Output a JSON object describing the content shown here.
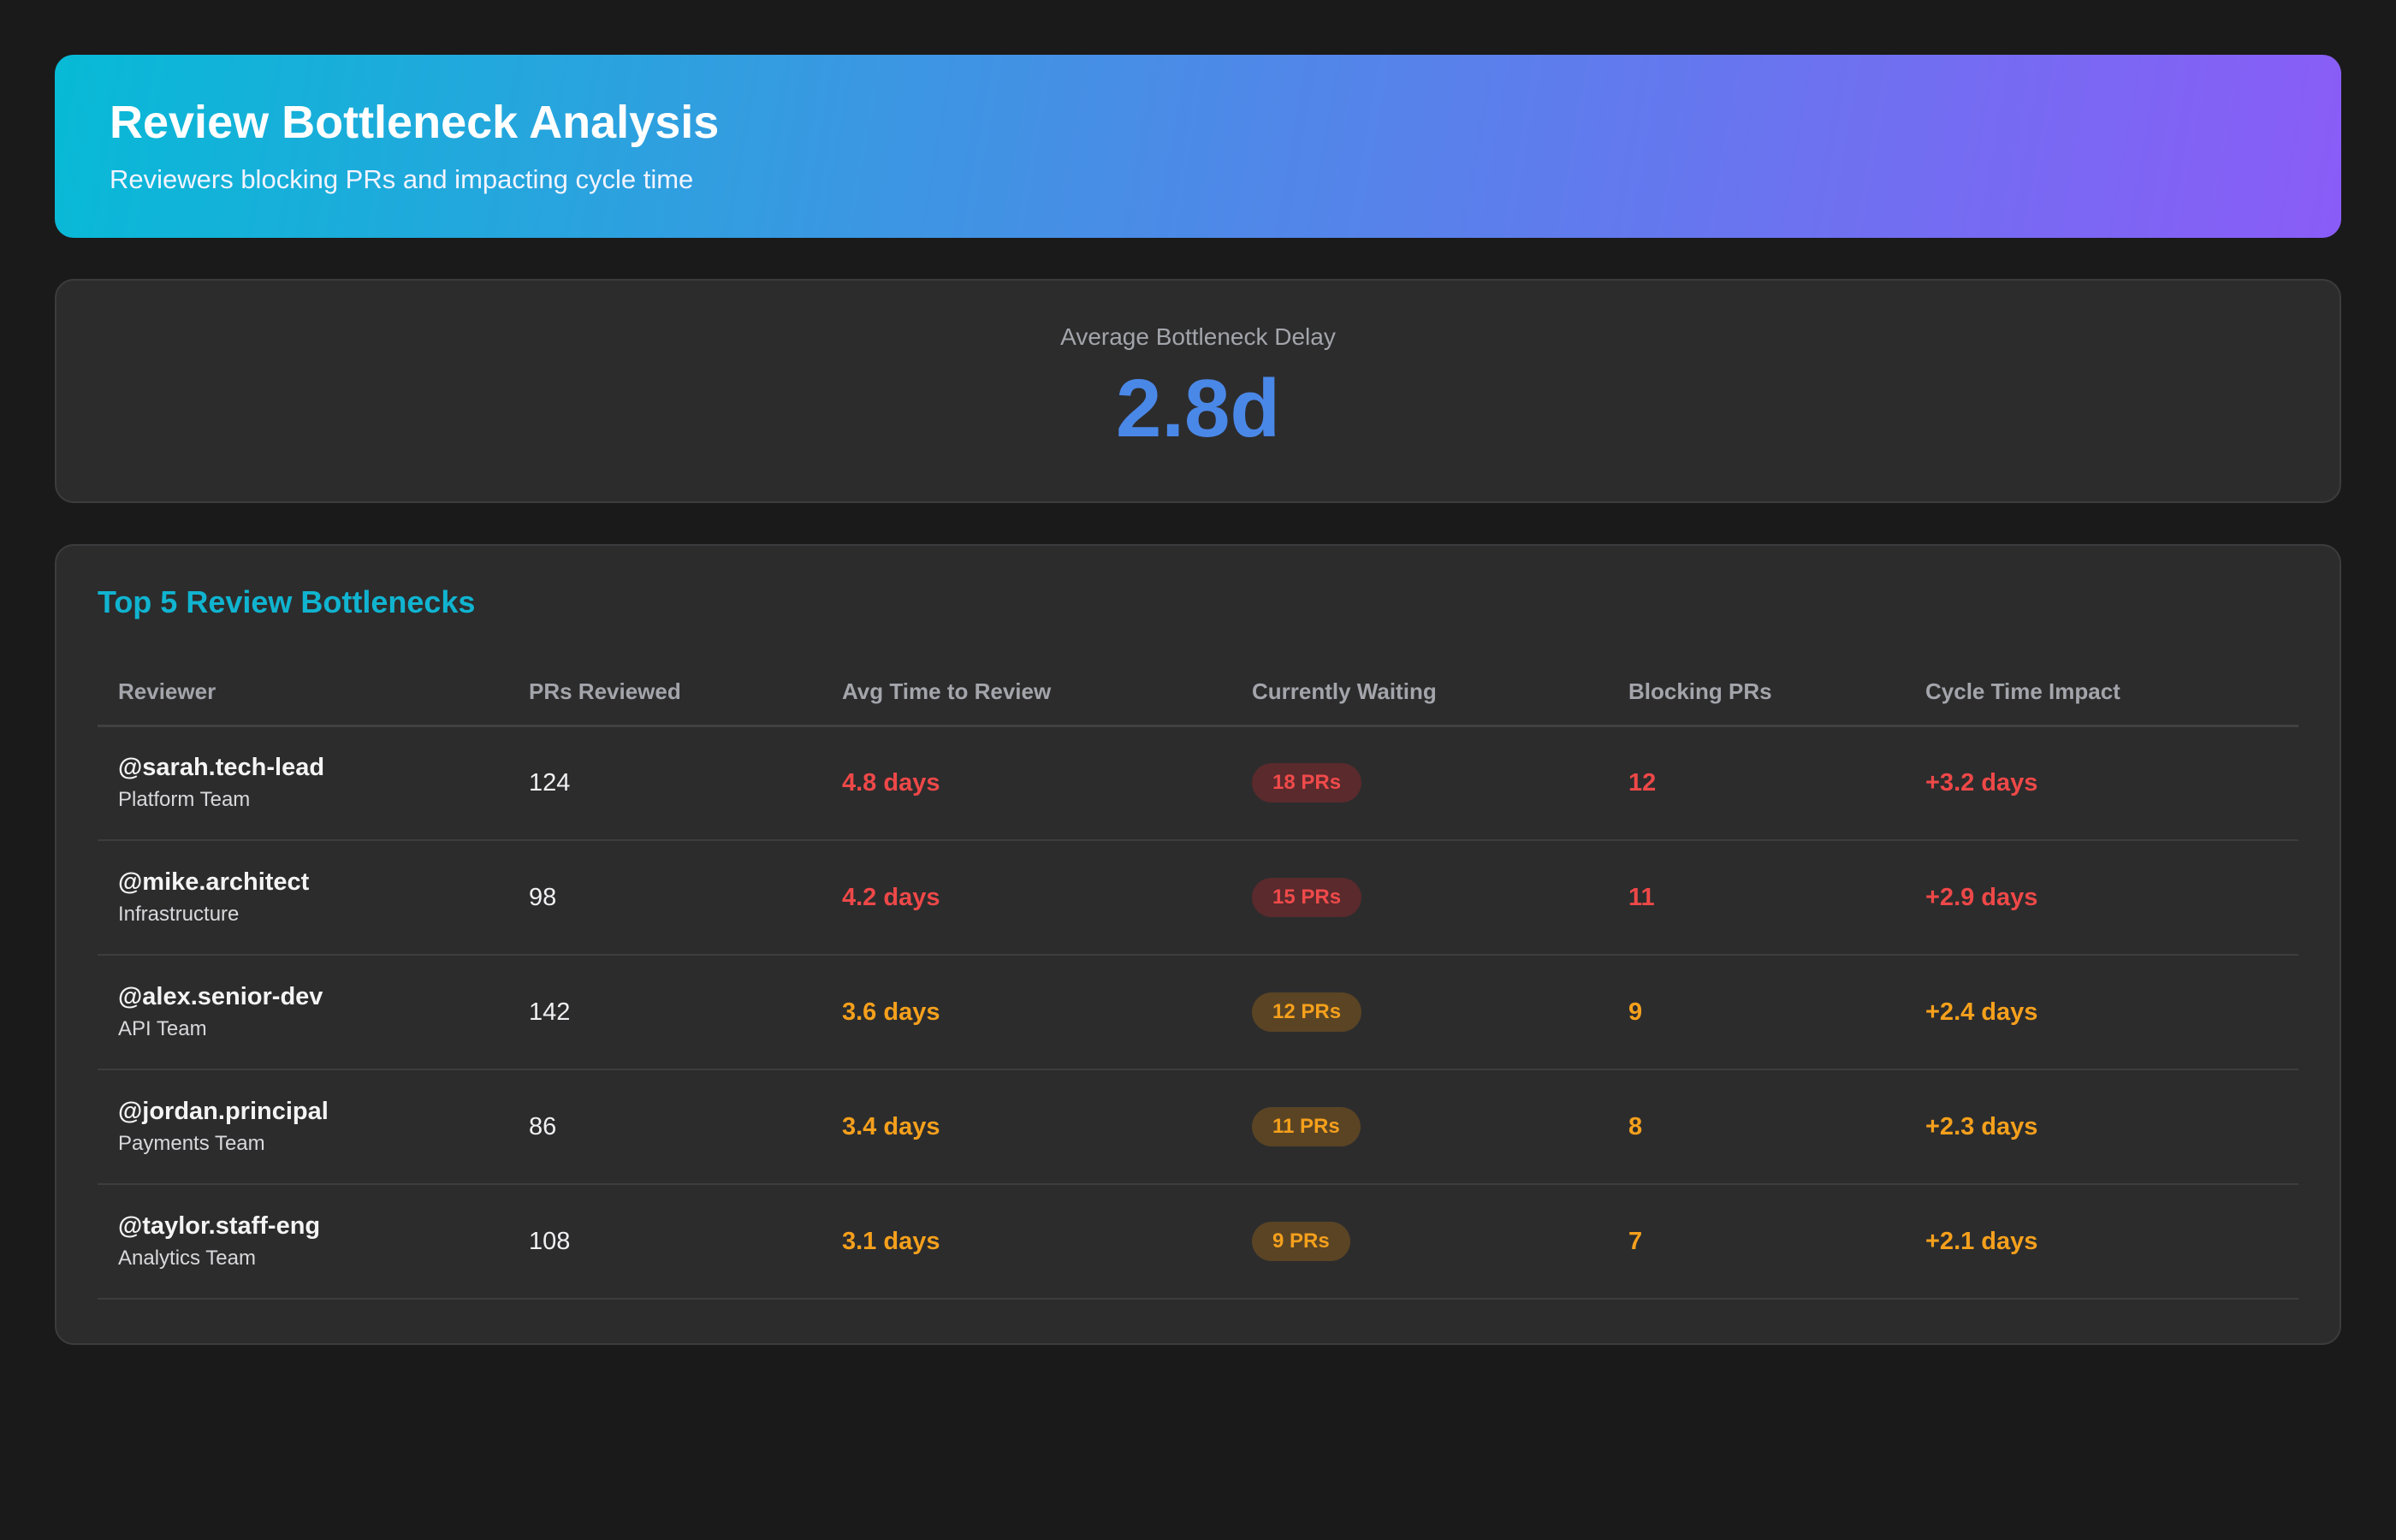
{
  "header": {
    "title": "Review Bottleneck Analysis",
    "subtitle": "Reviewers blocking PRs and impacting cycle time"
  },
  "metric": {
    "label": "Average Bottleneck Delay",
    "value": "2.8d",
    "value_color": "#4a88e8"
  },
  "table": {
    "title": "Top 5 Review Bottlenecks",
    "columns": [
      "Reviewer",
      "PRs Reviewed",
      "Avg Time to Review",
      "Currently Waiting",
      "Blocking PRs",
      "Cycle Time Impact"
    ],
    "rows": [
      {
        "name": "@sarah.tech-lead",
        "team": "Platform Team",
        "prs_reviewed": "124",
        "avg_time": "4.8 days",
        "waiting": "18 PRs",
        "blocking": "12",
        "impact": "+3.2 days",
        "severity": "red"
      },
      {
        "name": "@mike.architect",
        "team": "Infrastructure",
        "prs_reviewed": "98",
        "avg_time": "4.2 days",
        "waiting": "15 PRs",
        "blocking": "11",
        "impact": "+2.9 days",
        "severity": "red"
      },
      {
        "name": "@alex.senior-dev",
        "team": "API Team",
        "prs_reviewed": "142",
        "avg_time": "3.6 days",
        "waiting": "12 PRs",
        "blocking": "9",
        "impact": "+2.4 days",
        "severity": "orange"
      },
      {
        "name": "@jordan.principal",
        "team": "Payments Team",
        "prs_reviewed": "86",
        "avg_time": "3.4 days",
        "waiting": "11 PRs",
        "blocking": "8",
        "impact": "+2.3 days",
        "severity": "orange"
      },
      {
        "name": "@taylor.staff-eng",
        "team": "Analytics Team",
        "prs_reviewed": "108",
        "avg_time": "3.1 days",
        "waiting": "9 PRs",
        "blocking": "7",
        "impact": "+2.1 days",
        "severity": "orange"
      }
    ]
  },
  "colors": {
    "severity_red": "#ee4848",
    "severity_orange": "#f5a01c",
    "accent": "#10b4d0"
  }
}
